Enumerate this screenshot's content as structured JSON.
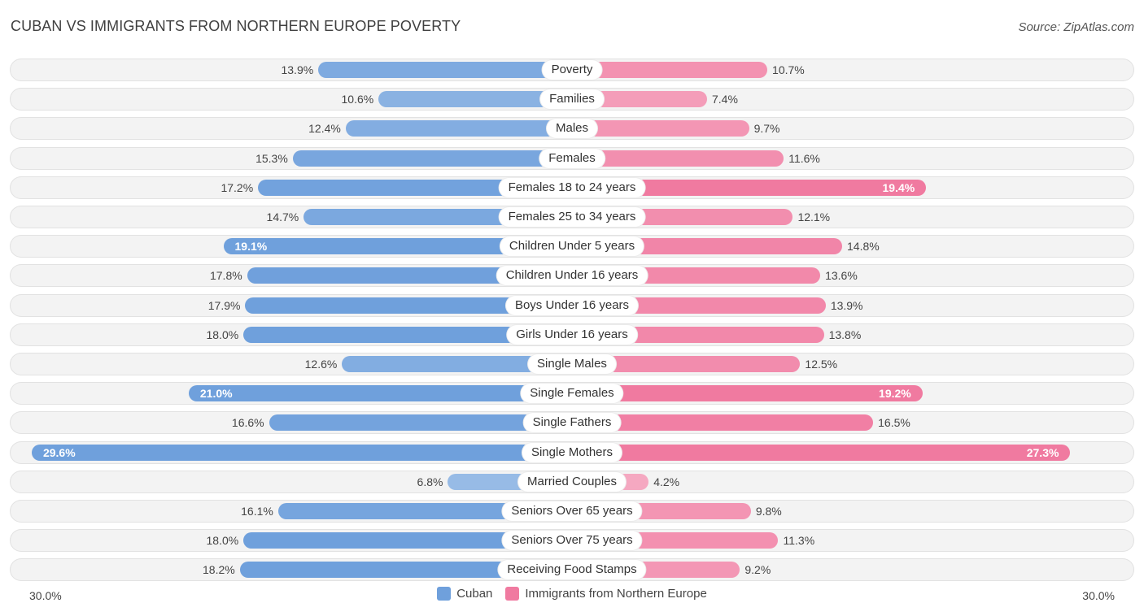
{
  "header": {
    "title": "CUBAN VS IMMIGRANTS FROM NORTHERN EUROPE POVERTY",
    "source": "Source: ZipAtlas.com"
  },
  "colors": {
    "left_series": "#6fa0dc",
    "right_series": "#f07aa0"
  },
  "axis": {
    "left_label": "30.0%",
    "right_label": "30.0%"
  },
  "legend": {
    "left": "Cuban",
    "right": "Immigrants from Northern Europe"
  },
  "chart_data": {
    "type": "bar",
    "orientation": "horizontal-diverging",
    "title": "CUBAN VS IMMIGRANTS FROM NORTHERN EUROPE POVERTY",
    "xlim": [
      0,
      30
    ],
    "unit": "%",
    "categories": [
      "Poverty",
      "Families",
      "Males",
      "Females",
      "Females 18 to 24 years",
      "Females 25 to 34 years",
      "Children Under 5 years",
      "Children Under 16 years",
      "Boys Under 16 years",
      "Girls Under 16 years",
      "Single Males",
      "Single Females",
      "Single Fathers",
      "Single Mothers",
      "Married Couples",
      "Seniors Over 65 years",
      "Seniors Over 75 years",
      "Receiving Food Stamps"
    ],
    "series": [
      {
        "name": "Cuban",
        "values": [
          13.9,
          10.6,
          12.4,
          15.3,
          17.2,
          14.7,
          19.1,
          17.8,
          17.9,
          18.0,
          12.6,
          21.0,
          16.6,
          29.6,
          6.8,
          16.1,
          18.0,
          18.2
        ],
        "labels": [
          "13.9%",
          "10.6%",
          "12.4%",
          "15.3%",
          "17.2%",
          "14.7%",
          "19.1%",
          "17.8%",
          "17.9%",
          "18.0%",
          "12.6%",
          "21.0%",
          "16.6%",
          "29.6%",
          "6.8%",
          "16.1%",
          "18.0%",
          "18.2%"
        ]
      },
      {
        "name": "Immigrants from Northern Europe",
        "values": [
          10.7,
          7.4,
          9.7,
          11.6,
          19.4,
          12.1,
          14.8,
          13.6,
          13.9,
          13.8,
          12.5,
          19.2,
          16.5,
          27.3,
          4.2,
          9.8,
          11.3,
          9.2
        ],
        "labels": [
          "10.7%",
          "7.4%",
          "9.7%",
          "11.6%",
          "19.4%",
          "12.1%",
          "14.8%",
          "13.6%",
          "13.9%",
          "13.8%",
          "12.5%",
          "19.2%",
          "16.5%",
          "27.3%",
          "4.2%",
          "9.8%",
          "11.3%",
          "9.2%"
        ]
      }
    ]
  }
}
